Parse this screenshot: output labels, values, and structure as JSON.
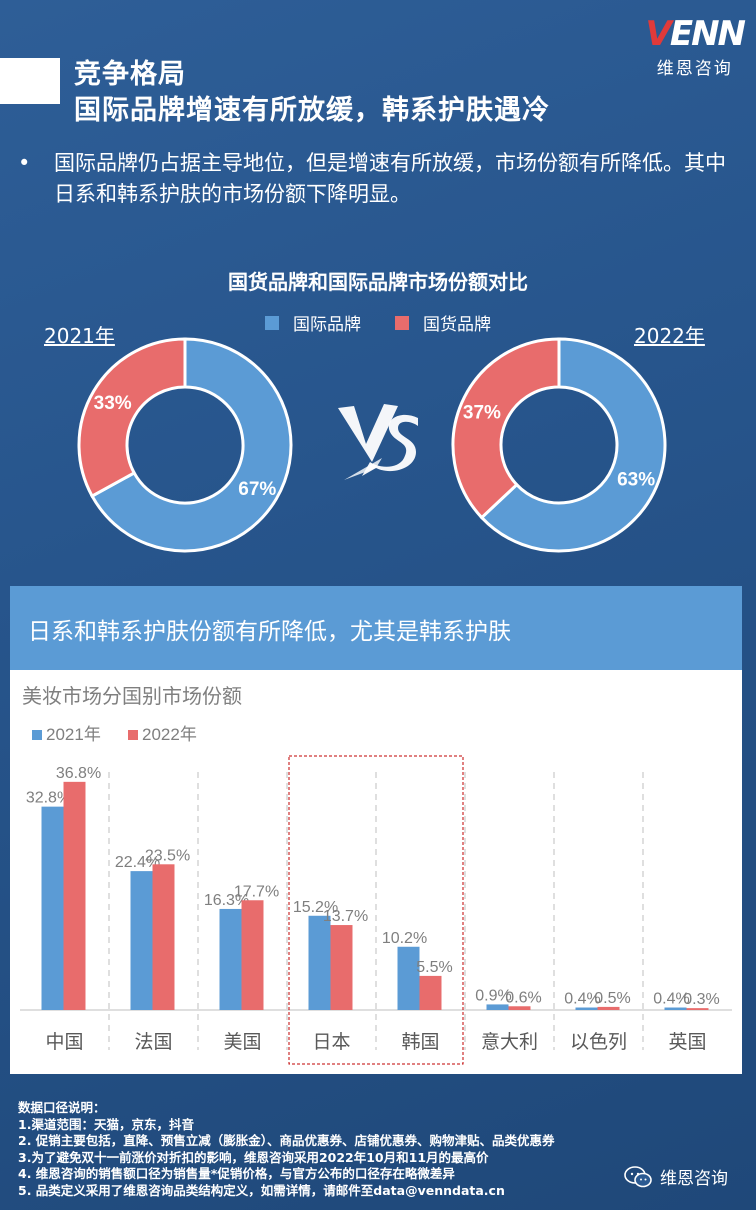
{
  "header": {
    "section": "竞争格局",
    "headline": "国际品牌增速有所放缓，韩系护肤遇冷",
    "logo_text": "VENN",
    "logo_sub": "维恩咨询"
  },
  "bullet": "国际品牌仍占据主导地位，但是增速有所放缓，市场份额有所降低。其中日系和韩系护肤的市场份额下降明显。",
  "pie_section": {
    "title": "国货品牌和国际品牌市场份额对比",
    "legend": [
      {
        "label": "国际品牌",
        "color": "#5b9bd5"
      },
      {
        "label": "国货品牌",
        "color": "#e86c6c"
      }
    ],
    "year_left": "2021年",
    "year_right": "2022年",
    "left": {
      "international_label": "67%",
      "domestic_label": "33%"
    },
    "right": {
      "international_label": "63%",
      "domestic_label": "37%"
    }
  },
  "panel": {
    "heading": "日系和韩系护肤份额有所降低，尤其是韩系护肤",
    "chart_title": "美妆市场分国别市场份额"
  },
  "chart_data": [
    {
      "type": "pie",
      "title": "2021年",
      "categories": [
        "国际品牌",
        "国货品牌"
      ],
      "values": [
        67,
        33
      ],
      "colors": [
        "#5b9bd5",
        "#e86c6c"
      ]
    },
    {
      "type": "pie",
      "title": "2022年",
      "categories": [
        "国际品牌",
        "国货品牌"
      ],
      "values": [
        63,
        37
      ],
      "colors": [
        "#5b9bd5",
        "#e86c6c"
      ]
    },
    {
      "type": "bar",
      "title": "美妆市场分国别市场份额",
      "categories": [
        "中国",
        "法国",
        "美国",
        "日本",
        "韩国",
        "意大利",
        "以色列",
        "英国"
      ],
      "series": [
        {
          "name": "2021年",
          "color": "#5b9bd5",
          "values": [
            32.8,
            22.4,
            16.3,
            15.2,
            10.2,
            0.9,
            0.4,
            0.4
          ],
          "labels": [
            "32.8%",
            "22.4%",
            "16.3%",
            "15.2%",
            "10.2%",
            "0.9%",
            "0.4%",
            "0.4%"
          ]
        },
        {
          "name": "2022年",
          "color": "#e86c6c",
          "values": [
            36.8,
            23.5,
            17.7,
            13.7,
            5.5,
            0.6,
            0.5,
            0.3
          ],
          "labels": [
            "36.8%",
            "23.5%",
            "17.7%",
            "13.7%",
            "5.5%",
            "0.6%",
            "0.5%",
            "0.3%"
          ]
        }
      ],
      "ylim": [
        0,
        40
      ],
      "grid": false,
      "legend": "top-left",
      "highlight": [
        "日本",
        "韩国"
      ]
    }
  ],
  "notes": [
    "数据口径说明：",
    "1.渠道范围：天猫，京东，抖音",
    "2. 促销主要包括，直降、预售立减（膨胀金）、商品优惠券、店铺优惠券、购物津贴、品类优惠券",
    "3.为了避免双十一前涨价对折扣的影响，维恩咨询采用2022年10月和11月的最高价",
    "4. 维恩咨询的销售额口径为销售量*促销价格，与官方公布的口径存在略微差异",
    "5. 品类定义采用了维恩咨询品类结构定义，如需详情，请邮件至data@venndata.cn"
  ],
  "wechat": {
    "label": "维恩咨询",
    "icon": "wechat-icon"
  }
}
